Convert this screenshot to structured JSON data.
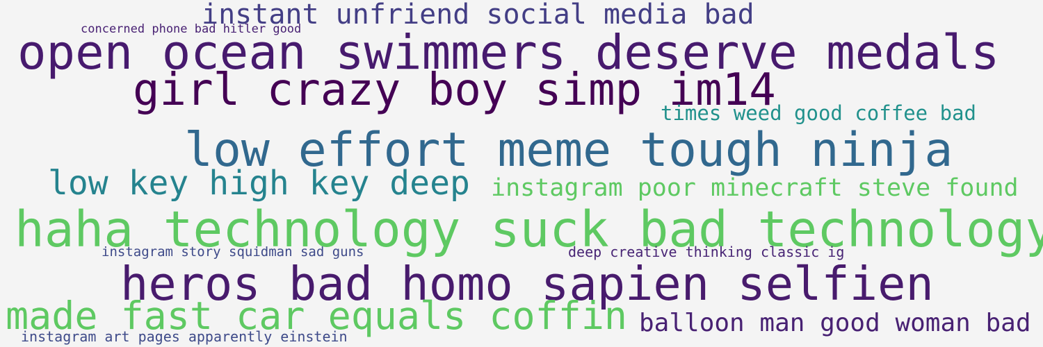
{
  "word_cloud": {
    "phrases": [
      {
        "text": "instant unfriend social media bad",
        "color": "#433e85"
      },
      {
        "text": "concerned phone bad hitler good",
        "color": "#482173"
      },
      {
        "text": "open ocean swimmers deserve medals",
        "color": "#471a6e"
      },
      {
        "text": "girl crazy boy simp im14",
        "color": "#440154"
      },
      {
        "text": "times weed good coffee bad",
        "color": "#21918c"
      },
      {
        "text": "low effort meme tough ninja",
        "color": "#31688e"
      },
      {
        "text": "low key high key deep",
        "color": "#25838e"
      },
      {
        "text": "instagram poor minecraft steve found",
        "color": "#5ec962"
      },
      {
        "text": "haha technology suck bad technology",
        "color": "#5ec962"
      },
      {
        "text": "instagram story squidman sad guns",
        "color": "#3e4a89"
      },
      {
        "text": "deep creative thinking classic ig",
        "color": "#482575"
      },
      {
        "text": "heros bad homo sapien selfien",
        "color": "#481b6d"
      },
      {
        "text": "made fast car equals coffin",
        "color": "#5ec962"
      },
      {
        "text": "balloon man good woman bad",
        "color": "#482173"
      },
      {
        "text": "instagram art pages apparently einstein",
        "color": "#3e4a89"
      }
    ]
  }
}
